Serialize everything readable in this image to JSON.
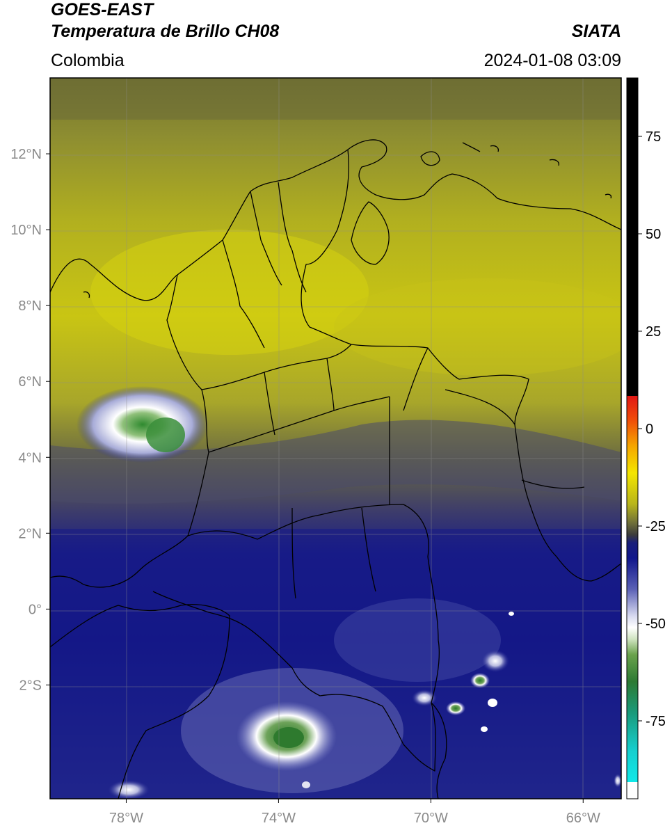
{
  "header": {
    "title_line1": "GOES-EAST",
    "title_line2": "Temperatura de Brillo CH08",
    "region": "Colombia",
    "source": "SIATA",
    "datetime": "2024-01-08 03:09"
  },
  "map": {
    "lat_ticks": [
      "12°N",
      "10°N",
      "8°N",
      "6°N",
      "4°N",
      "2°N",
      "0°",
      "2°S"
    ],
    "lon_ticks": [
      "78°W",
      "74°W",
      "70°W",
      "66°W"
    ],
    "lat_range": [
      -5,
      14
    ],
    "lon_range": [
      -80,
      -65
    ]
  },
  "colorbar": {
    "ticks": [
      "75",
      "50",
      "25",
      "0",
      "-25",
      "-50",
      "-75"
    ],
    "range": [
      -95,
      90
    ]
  },
  "colors": {
    "black_band": "#000000",
    "red": "#e31a10",
    "yellow": "#e6df00",
    "olive": "#7a7a2c",
    "navy": "#10178a",
    "white": "#ffffff",
    "green": "#2e7f2e",
    "cyan": "#12dcdc"
  }
}
